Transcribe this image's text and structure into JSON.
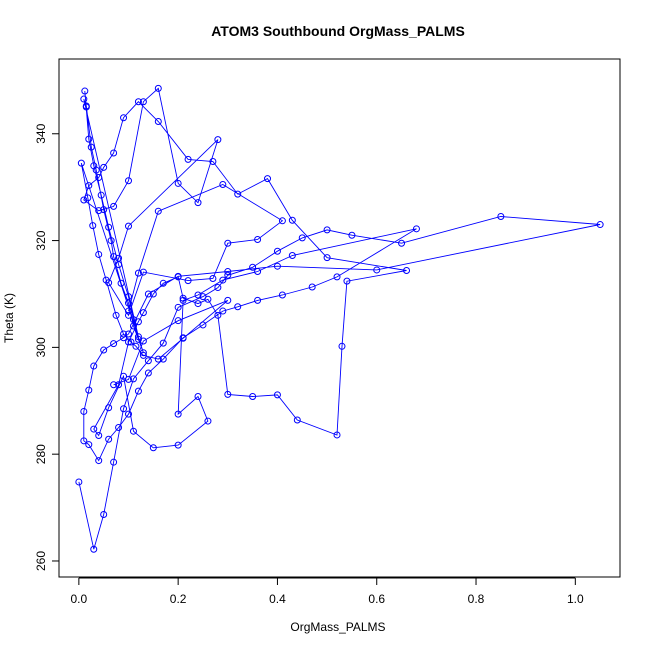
{
  "chart_data": {
    "type": "line",
    "title": "ATOM3 Southbound OrgMass_PALMS",
    "xlabel": "OrgMass_PALMS",
    "ylabel": "Theta (K)",
    "xlim": [
      -0.04,
      1.09
    ],
    "ylim": [
      257,
      354
    ],
    "xticks": [
      0.0,
      0.2,
      0.4,
      0.6,
      0.8,
      1.0
    ],
    "xtick_labels": [
      "0.0",
      "0.2",
      "0.4",
      "0.6",
      "0.8",
      "1.0"
    ],
    "yticks": [
      260,
      280,
      300,
      320,
      340
    ],
    "ytick_labels": [
      "260",
      "280",
      "300",
      "320",
      "340"
    ],
    "grid": false,
    "color": "#0000ff",
    "series": [
      {
        "marker": "open-circle",
        "x": [
          0.0,
          0.03,
          0.05,
          0.07,
          0.09,
          0.11,
          0.14,
          0.17,
          0.2,
          0.25,
          0.28,
          0.3,
          0.35,
          0.4,
          0.45,
          0.5,
          0.55,
          0.65,
          0.85,
          1.05,
          0.6,
          0.4,
          0.3,
          0.2,
          0.14,
          0.1,
          0.09,
          0.07,
          0.05,
          0.03,
          0.02,
          0.01,
          0.01,
          0.02,
          0.04,
          0.06,
          0.08,
          0.1,
          0.12,
          0.14,
          0.17,
          0.21,
          0.25,
          0.29,
          0.32,
          0.36,
          0.41,
          0.47,
          0.52,
          0.68,
          0.43,
          0.36,
          0.29,
          0.24,
          0.21,
          0.2,
          0.24,
          0.26,
          0.2,
          0.15,
          0.11,
          0.09,
          0.06,
          0.04,
          0.03,
          0.08,
          0.1,
          0.12,
          0.13,
          0.15,
          0.17,
          0.2,
          0.21,
          0.24,
          0.26,
          0.28,
          0.3,
          0.35,
          0.4,
          0.44,
          0.52,
          0.53,
          0.54,
          0.66,
          0.5,
          0.43,
          0.38,
          0.32,
          0.27,
          0.22,
          0.16,
          0.12,
          0.09,
          0.07,
          0.05,
          0.04,
          0.02,
          0.01,
          0.04,
          0.07,
          0.1,
          0.13,
          0.16,
          0.2,
          0.24,
          0.28,
          0.1,
          0.08,
          0.06,
          0.1,
          0.13,
          0.22,
          0.27,
          0.3,
          0.36,
          0.41,
          0.29,
          0.16,
          0.12,
          0.1
        ],
        "y": [
          274.8,
          262.2,
          268.7,
          278.5,
          288.5,
          294.1,
          297.5,
          300.8,
          307.5,
          309.5,
          311.2,
          313.5,
          315.0,
          318.0,
          320.5,
          322.0,
          321.0,
          319.5,
          324.5,
          323.0,
          314.5,
          315.2,
          314.2,
          313.3,
          310.0,
          302.5,
          301.8,
          300.7,
          299.5,
          296.5,
          292.0,
          288.0,
          282.5,
          281.8,
          278.8,
          282.8,
          285.0,
          287.5,
          291.8,
          295.2,
          297.8,
          301.8,
          304.2,
          306.8,
          307.6,
          308.8,
          309.8,
          311.3,
          313.2,
          322.2,
          317.2,
          314.2,
          312.6,
          309.8,
          308.8,
          287.5,
          290.8,
          286.2,
          281.7,
          281.2,
          284.3,
          294.6,
          288.7,
          283.5,
          284.7,
          293.0,
          301.0,
          304.8,
          306.5,
          310.0,
          312.0,
          313.2,
          309.2,
          308.2,
          309.0,
          306.0,
          291.2,
          290.8,
          291.1,
          286.4,
          283.6,
          300.2,
          312.4,
          314.4,
          316.8,
          323.8,
          331.6,
          328.7,
          334.8,
          335.2,
          342.3,
          346.0,
          343.0,
          336.4,
          333.7,
          331.8,
          330.3,
          327.6,
          325.6,
          326.4,
          331.2,
          346.0,
          348.5,
          330.7,
          327.1,
          338.9,
          322.7,
          316.7,
          312.1,
          306.0,
          314.1,
          312.5,
          312.9,
          319.5,
          320.2,
          323.7,
          330.5,
          325.5,
          313.9,
          306.8
        ]
      },
      {
        "marker": "open-circle",
        "x": [
          0.015,
          0.012,
          0.02,
          0.03,
          0.045,
          0.06,
          0.08,
          0.1,
          0.11,
          0.12,
          0.01,
          0.015,
          0.025,
          0.035,
          0.05,
          0.065,
          0.07,
          0.085,
          0.1,
          0.11,
          0.12,
          0.13,
          0.005,
          0.018,
          0.028,
          0.04,
          0.055,
          0.075,
          0.09,
          0.105,
          0.115,
          0.13,
          0.16,
          0.21,
          0.3,
          0.2,
          0.13,
          0.1,
          0.07
        ],
        "y": [
          345.0,
          348.0,
          339.0,
          334.0,
          328.5,
          322.5,
          315.5,
          309.5,
          305.2,
          302.0,
          346.5,
          345.2,
          337.5,
          333.2,
          325.8,
          320.0,
          317.0,
          312.0,
          308.3,
          304.0,
          301.5,
          299.0,
          334.5,
          328.0,
          322.8,
          317.4,
          312.6,
          306.0,
          302.5,
          301.0,
          300.2,
          298.5,
          297.8,
          301.7,
          308.8,
          305.0,
          301.2,
          294.0,
          293.0
        ]
      }
    ]
  }
}
